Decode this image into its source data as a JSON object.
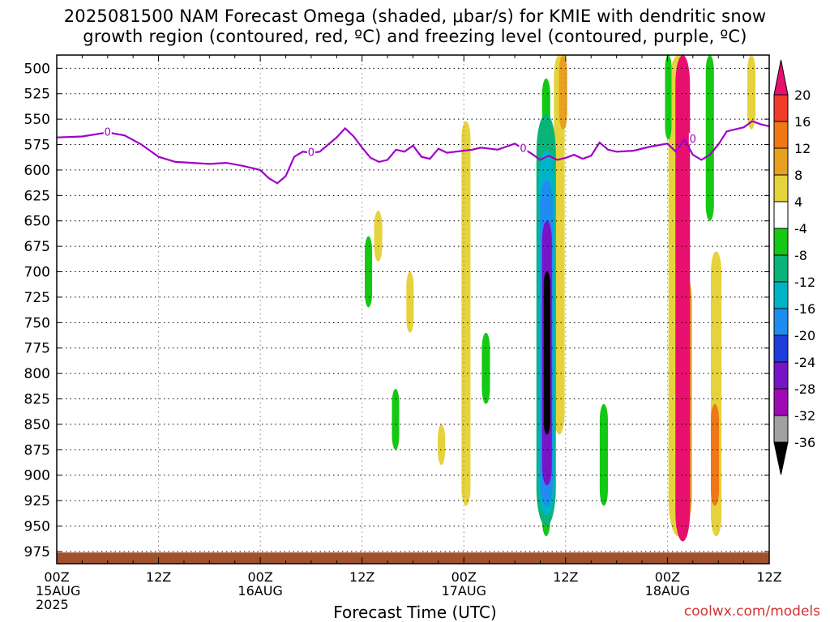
{
  "title": {
    "line1": "2025081500 NAM Forecast Omega (shaded, μbar/s) for KMIE with dendritic snow",
    "line2": "growth region (contoured, red, ºC) and freezing level (contoured, purple, ºC)"
  },
  "credit": "coolwx.com/models",
  "chart_data": {
    "type": "heatmap",
    "title": "2025081500 NAM Forecast Omega (shaded, μbar/s) for KMIE with dendritic snow growth region (contoured, red, ºC) and freezing level (contoured, purple, ºC)",
    "xlabel": "Forecast Time (UTC)",
    "ylabel": "",
    "x_unit": "forecast hour",
    "xlim": [
      0,
      84
    ],
    "ylim": [
      987,
      487
    ],
    "y_inverted": true,
    "pressure_levels": [
      500,
      525,
      550,
      575,
      600,
      625,
      650,
      675,
      700,
      725,
      750,
      775,
      800,
      825,
      850,
      875,
      900,
      925,
      950,
      975
    ],
    "x_ticks": [
      {
        "hour": 0,
        "lines": [
          "00Z",
          "15AUG",
          "2025"
        ]
      },
      {
        "hour": 12,
        "lines": [
          "12Z"
        ]
      },
      {
        "hour": 24,
        "lines": [
          "00Z",
          "16AUG"
        ]
      },
      {
        "hour": 36,
        "lines": [
          "12Z"
        ]
      },
      {
        "hour": 48,
        "lines": [
          "00Z",
          "17AUG"
        ]
      },
      {
        "hour": 60,
        "lines": [
          "12Z"
        ]
      },
      {
        "hour": 72,
        "lines": [
          "00Z",
          "18AUG"
        ]
      },
      {
        "hour": 84,
        "lines": [
          "12Z"
        ]
      }
    ],
    "grid": true,
    "colorbar": {
      "levels": [
        "20",
        "16",
        "12",
        "8",
        "4",
        "-4",
        "-8",
        "-12",
        "-16",
        "-20",
        "-24",
        "-28",
        "-32",
        "-36"
      ],
      "colors": [
        "#e8106e",
        "#f03c28",
        "#f07814",
        "#e8a01e",
        "#e6d23c",
        "#ffffff",
        "#14c814",
        "#0ab478",
        "#00b4c8",
        "#1e8cf0",
        "#1e3cdc",
        "#7814c8",
        "#a00ab4",
        "#a0a0a0",
        "#000000"
      ]
    },
    "freezing_level": {
      "color": "#a000c8",
      "contour_label": "0",
      "x": [
        0,
        3,
        6,
        8,
        10,
        12,
        14,
        16,
        18,
        20,
        22,
        24,
        25,
        26,
        27,
        28,
        29,
        30,
        31,
        32,
        33,
        34,
        35,
        36,
        37,
        38,
        39,
        40,
        41,
        42,
        43,
        44,
        45,
        46,
        47,
        48,
        49,
        50,
        52,
        54,
        56,
        57,
        58,
        59,
        60,
        61,
        62,
        63,
        64,
        65,
        66,
        68,
        70,
        72,
        73,
        74,
        75,
        76,
        77,
        78,
        79,
        80,
        81,
        82,
        83,
        84
      ],
      "y": [
        568,
        567,
        563,
        566,
        575,
        587,
        592,
        593,
        594,
        593,
        596,
        600,
        608,
        613,
        606,
        587,
        582,
        583,
        582,
        575,
        568,
        559,
        567,
        578,
        588,
        592,
        590,
        580,
        582,
        576,
        587,
        589,
        579,
        583,
        582,
        581,
        580,
        578,
        580,
        574,
        584,
        590,
        586,
        590,
        588,
        585,
        589,
        586,
        573,
        580,
        582,
        581,
        577,
        574,
        582,
        570,
        585,
        590,
        585,
        575,
        562,
        560,
        558,
        552,
        555,
        557
      ]
    },
    "omega_regions": [
      {
        "level": "4",
        "x0": 48.1,
        "x1": 48.4,
        "p0": 552,
        "p1": 930
      },
      {
        "level": "4",
        "x0": 59.0,
        "x1": 59.5,
        "p0": 487,
        "p1": 860
      },
      {
        "level": "4",
        "x0": 37.8,
        "x1": 38.0,
        "p0": 640,
        "p1": 690
      },
      {
        "level": "4",
        "x0": 41.6,
        "x1": 41.7,
        "p0": 700,
        "p1": 760
      },
      {
        "level": "4",
        "x0": 45.3,
        "x1": 45.4,
        "p0": 850,
        "p1": 890
      },
      {
        "level": "4",
        "x0": 72.5,
        "x1": 74.0,
        "p0": 487,
        "p1": 960
      },
      {
        "level": "4",
        "x0": 77.5,
        "x1": 78.0,
        "p0": 680,
        "p1": 960
      },
      {
        "level": "4",
        "x0": 81.8,
        "x1": 82.0,
        "p0": 487,
        "p1": 560
      },
      {
        "level": "8",
        "x0": 59.6,
        "x1": 59.8,
        "p0": 487,
        "p1": 560
      },
      {
        "level": "8",
        "x0": 73.5,
        "x1": 74.5,
        "p0": 700,
        "p1": 950
      },
      {
        "level": "12",
        "x0": 77.5,
        "x1": 77.7,
        "p0": 830,
        "p1": 930
      },
      {
        "level": "20",
        "x0": 73.6,
        "x1": 74.0,
        "p0": 487,
        "p1": 965
      },
      {
        "level": "-4",
        "x0": 57.6,
        "x1": 57.8,
        "p0": 510,
        "p1": 960
      },
      {
        "level": "-8",
        "x0": 57.6,
        "x1": 57.8,
        "p0": 545,
        "p1": 950
      },
      {
        "level": "-12",
        "x0": 57.7,
        "x1": 57.8,
        "p0": 580,
        "p1": 940
      },
      {
        "level": "-16",
        "x0": 57.7,
        "x1": 57.8,
        "p0": 610,
        "p1": 930
      },
      {
        "level": "-24",
        "x0": 57.8,
        "x1": 57.8,
        "p0": 650,
        "p1": 910
      },
      {
        "level": "-36",
        "x0": 57.8,
        "x1": 57.8,
        "p0": 700,
        "p1": 860
      },
      {
        "level": "-4",
        "x0": 76.9,
        "x1": 77.1,
        "p0": 487,
        "p1": 650
      },
      {
        "level": "-4",
        "x0": 50.5,
        "x1": 50.7,
        "p0": 760,
        "p1": 830
      },
      {
        "level": "-4",
        "x0": 64.4,
        "x1": 64.6,
        "p0": 830,
        "p1": 930
      },
      {
        "level": "-4",
        "x0": 36.7,
        "x1": 36.8,
        "p0": 665,
        "p1": 735
      },
      {
        "level": "-4",
        "x0": 39.9,
        "x1": 40.0,
        "p0": 815,
        "p1": 875
      },
      {
        "level": "-4",
        "x0": 72.1,
        "x1": 72.1,
        "p0": 487,
        "p1": 570
      }
    ],
    "ground": {
      "color": "#a0522d",
      "p_top": 976,
      "p_bottom": 987
    }
  }
}
